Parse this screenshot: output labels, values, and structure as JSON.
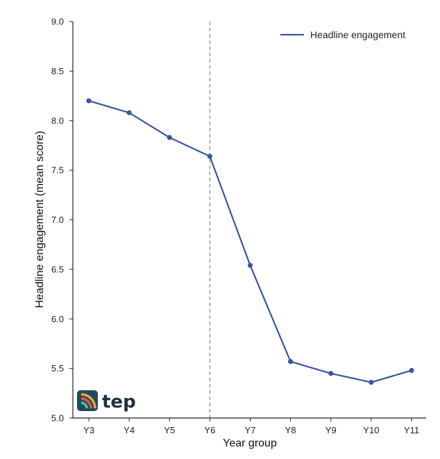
{
  "chart_data": {
    "type": "line",
    "categories": [
      "Y3",
      "Y4",
      "Y5",
      "Y6",
      "Y7",
      "Y8",
      "Y9",
      "Y10",
      "Y11"
    ],
    "series": [
      {
        "name": "Headline engagement",
        "values": [
          8.2,
          8.08,
          7.83,
          7.64,
          6.54,
          5.57,
          5.45,
          5.36,
          5.48
        ]
      }
    ],
    "xlabel": "Year group",
    "ylabel": "Headline engagement (mean score)",
    "ylim": [
      5.0,
      9.0
    ],
    "yticks": [
      "5.0",
      "5.5",
      "6.0",
      "6.5",
      "7.0",
      "7.5",
      "8.0",
      "8.5",
      "9.0"
    ],
    "reference_line_category": "Y6",
    "legend_position": "top-right",
    "grid": false,
    "colors": {
      "line": "#3b55a1",
      "reference": "#888888",
      "axis": "#222222"
    }
  },
  "logo": {
    "text": "tep",
    "colors": {
      "bg": "#1f4c5a",
      "arc1": "#f0a23a",
      "arc2": "#e2574c",
      "arc3": "#5fb6a7"
    }
  }
}
